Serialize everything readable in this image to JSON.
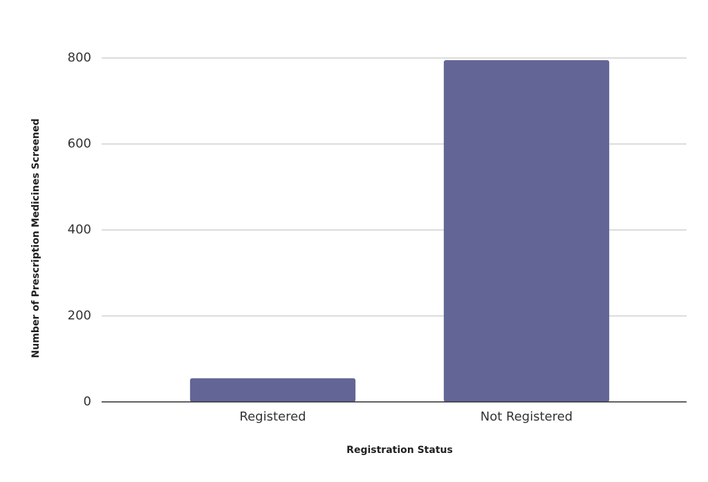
{
  "chart_data": {
    "type": "bar",
    "categories": [
      "Registered",
      "Not Registered"
    ],
    "values": [
      55,
      795
    ],
    "color": "#636596",
    "xlabel": "Registration Status",
    "ylabel": "Number of Prescription Medicines Screened",
    "ylim": [
      0,
      800
    ],
    "yticks": [
      0,
      200,
      400,
      600,
      800
    ],
    "grid": true
  }
}
